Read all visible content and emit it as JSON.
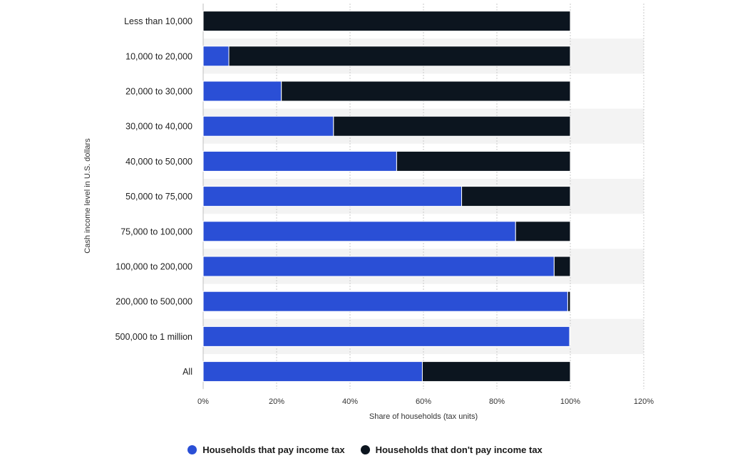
{
  "chart_data": {
    "type": "bar",
    "orientation": "horizontal",
    "stacked": true,
    "categories": [
      "Less than 10,000",
      "10,000 to 20,000",
      "20,000 to 30,000",
      "30,000 to 40,000",
      "40,000 to 50,000",
      "50,000 to 75,000",
      "75,000 to 100,000",
      "100,000 to 200,000",
      "200,000 to 500,000",
      "500,000 to 1 million",
      "All"
    ],
    "series": [
      {
        "name": "Households that pay income tax",
        "color": "#2a4fd6",
        "values": [
          0,
          7,
          21.3,
          35.5,
          52.7,
          70.4,
          85.1,
          95.6,
          99.3,
          99.8,
          59.7
        ]
      },
      {
        "name": "Households that don't pay income tax",
        "color": "#0c151f",
        "values": [
          100,
          93,
          78.7,
          64.5,
          47.3,
          29.6,
          14.9,
          4.4,
          0.7,
          0.2,
          40.3
        ]
      }
    ],
    "xlabel": "Share of households (tax units)",
    "ylabel": "Cash income level in U.S. dollars",
    "xlim": [
      0,
      120
    ],
    "xticks": [
      "0%",
      "20%",
      "40%",
      "60%",
      "80%",
      "100%",
      "120%"
    ],
    "grid": true,
    "legend_position": "bottom"
  }
}
